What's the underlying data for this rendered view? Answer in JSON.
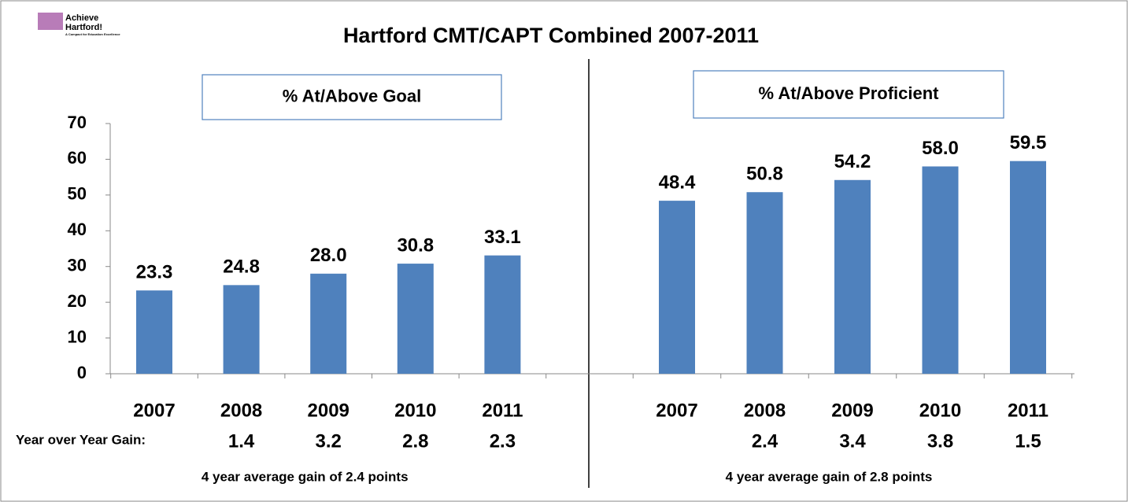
{
  "title": "Hartford CMT/CAPT  Combined 2007-2011",
  "logo": [
    "Achieve",
    "Hartford!",
    "A Compact for Education Excellence"
  ],
  "chart_data": [
    {
      "type": "bar",
      "subtitle": "% At/Above Goal",
      "categories": [
        "2007",
        "2008",
        "2009",
        "2010",
        "2011"
      ],
      "values": [
        23.3,
        24.8,
        28.0,
        30.8,
        33.1
      ],
      "value_labels": [
        "23.3",
        "24.8",
        "28.0",
        "30.8",
        "33.1"
      ],
      "color": "#4f81bd",
      "ylim": [
        0,
        70
      ],
      "yticks": [
        0,
        10,
        20,
        30,
        40,
        50,
        60,
        70
      ],
      "gain_label": "Year over Year Gain:",
      "gains": [
        null,
        1.4,
        3.2,
        2.8,
        2.3
      ],
      "footnote": "4 year average gain of 2.4 points"
    },
    {
      "type": "bar",
      "subtitle": "% At/Above Proficient",
      "categories": [
        "2007",
        "2008",
        "2009",
        "2010",
        "2011"
      ],
      "values": [
        48.4,
        50.8,
        54.2,
        58.0,
        59.5
      ],
      "value_labels": [
        "48.4",
        "50.8",
        "54.2",
        "58.0",
        "59.5"
      ],
      "color": "#4f81bd",
      "ylim": [
        0,
        70
      ],
      "gains": [
        null,
        2.4,
        3.4,
        3.8,
        1.5
      ],
      "footnote": "4 year average gain of 2.8 points"
    }
  ]
}
